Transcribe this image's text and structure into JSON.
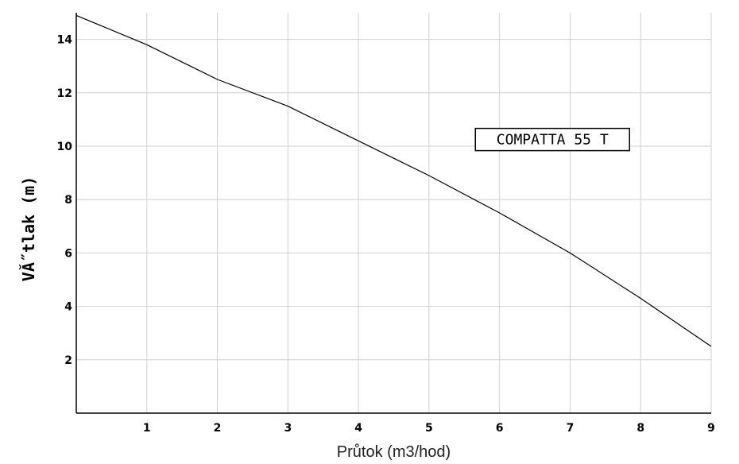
{
  "chart_data": {
    "type": "line",
    "title": "",
    "xlabel": "Průtok (m3/hod)",
    "ylabel": "VĂ˝tlak (m)",
    "xlim": [
      0,
      9
    ],
    "ylim": [
      0,
      15
    ],
    "x_ticks": [
      1,
      2,
      3,
      4,
      5,
      6,
      7,
      8,
      9
    ],
    "y_ticks": [
      2,
      4,
      6,
      8,
      10,
      12,
      14
    ],
    "grid": true,
    "legend": "none",
    "annotation": {
      "text": "COMPATTA 55 T",
      "x": 6.75,
      "y": 10.25
    },
    "series": [
      {
        "x": [
          0,
          1,
          2,
          3,
          4,
          5,
          6,
          7,
          8,
          9
        ],
        "y": [
          14.9,
          13.8,
          12.5,
          11.5,
          10.2,
          8.9,
          7.5,
          6.0,
          4.3,
          2.5
        ]
      }
    ],
    "colors": {
      "line": "#000000",
      "grid": "#d0d0d0",
      "axis": "#000000",
      "background": "#ffffff"
    }
  }
}
